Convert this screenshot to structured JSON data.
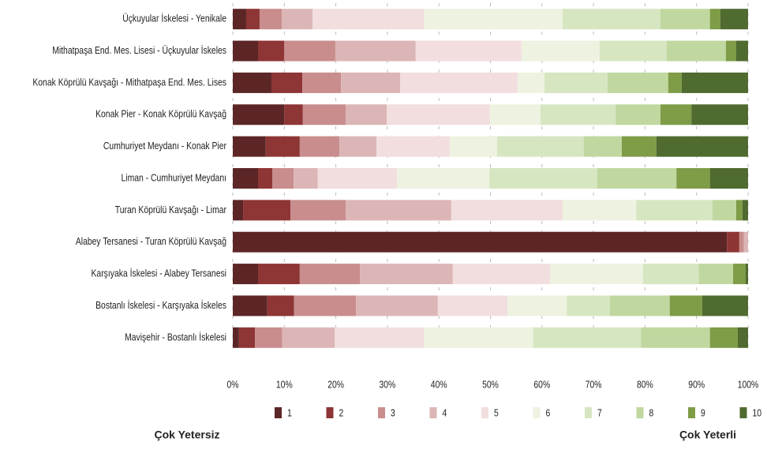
{
  "chart_data": {
    "type": "stacked_barh",
    "categories": [
      "Üçkuyular İskelesi - Yenikale",
      "Mithatpaşa End. Mes. Lisesi - Üçkuyular İskeles",
      "Konak Köprülü Kavşağı - Mithatpaşa End. Mes. Lises",
      "Konak Pier - Konak Köprülü Kavşağ",
      "Cumhuriyet Meydanı - Konak Pier",
      "Liman - Cumhuriyet Meydanı",
      "Turan Köprülü Kavşağı - Limar",
      "Alabey Tersanesi - Turan Köprülü Kavşağ",
      "Karşıyaka İskelesi - Alabey Tersanesi",
      "Bostanlı İskelesi - Karşıyaka İskeles",
      "Mavişehir - Bostanlı İskelesi"
    ],
    "series": [
      {
        "name": "1",
        "color": "#5c2626",
        "values": [
          2.6,
          4.9,
          7.5,
          10.0,
          6.4,
          4.9,
          2.0,
          95.9,
          4.9,
          6.7,
          1.2
        ]
      },
      {
        "name": "2",
        "color": "#8e3535",
        "values": [
          2.6,
          5.1,
          6.0,
          3.6,
          6.6,
          2.8,
          9.2,
          2.4,
          8.1,
          5.2,
          3.1
        ]
      },
      {
        "name": "3",
        "color": "#c98d8d",
        "values": [
          4.3,
          9.9,
          7.5,
          8.3,
          7.7,
          4.1,
          10.7,
          0.9,
          11.7,
          12.0,
          5.3
        ]
      },
      {
        "name": "4",
        "color": "#dcb6b6",
        "values": [
          6.0,
          15.6,
          11.5,
          8.0,
          7.2,
          4.7,
          20.5,
          0.8,
          18.0,
          15.9,
          10.2
        ]
      },
      {
        "name": "5",
        "color": "#f2dede",
        "values": [
          21.6,
          20.5,
          22.8,
          20.0,
          14.2,
          15.4,
          21.6,
          0,
          18.9,
          13.5,
          17.3
        ]
      },
      {
        "name": "6",
        "color": "#eef2e0",
        "values": [
          26.9,
          15.2,
          5.2,
          9.8,
          9.2,
          17.9,
          14.3,
          0,
          18.0,
          11.5,
          21.2
        ]
      },
      {
        "name": "7",
        "color": "#d6e6c1",
        "values": [
          19.0,
          13.0,
          12.2,
          14.6,
          16.8,
          20.9,
          14.8,
          0,
          10.8,
          8.4,
          20.9
        ]
      },
      {
        "name": "8",
        "color": "#c0d8a0",
        "values": [
          9.6,
          11.5,
          11.8,
          8.7,
          7.4,
          15.4,
          4.6,
          0,
          6.7,
          11.6,
          13.4
        ]
      },
      {
        "name": "9",
        "color": "#7f9c47",
        "values": [
          2.0,
          2.0,
          2.6,
          6.0,
          6.7,
          6.5,
          1.2,
          0,
          2.4,
          6.3,
          5.4
        ]
      },
      {
        "name": "10",
        "color": "#4f6b2f",
        "values": [
          5.4,
          2.3,
          12.9,
          11.0,
          17.8,
          7.4,
          1.1,
          0,
          0.5,
          8.9,
          2.0
        ]
      }
    ],
    "xlim": [
      0,
      100
    ],
    "xticks": [
      {
        "value": 0,
        "label": "0%"
      },
      {
        "value": 10,
        "label": "10%"
      },
      {
        "value": 20,
        "label": "20%"
      },
      {
        "value": 30,
        "label": "30%"
      },
      {
        "value": 40,
        "label": "40%"
      },
      {
        "value": 50,
        "label": "50%"
      },
      {
        "value": 60,
        "label": "60%"
      },
      {
        "value": 70,
        "label": "70%"
      },
      {
        "value": 80,
        "label": "80%"
      },
      {
        "value": 90,
        "label": "90%"
      },
      {
        "value": 100,
        "label": "100%"
      }
    ],
    "grid": true,
    "legend": "bottom",
    "annotations": [
      "Çok Yetersiz",
      "Çok Yeterli"
    ]
  }
}
